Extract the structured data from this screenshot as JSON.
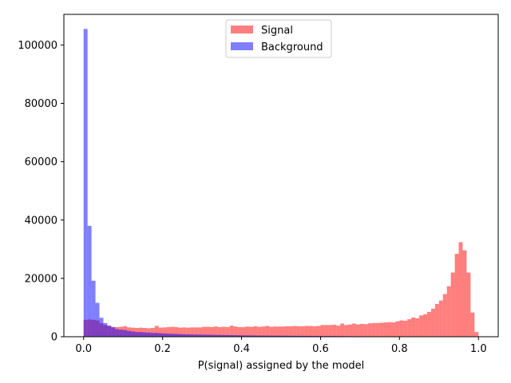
{
  "chart_data": {
    "type": "histogram",
    "xlabel": "P(signal) assigned by the model",
    "ylabel": "",
    "xlim": [
      -0.05,
      1.05
    ],
    "ylim": [
      0,
      110500
    ],
    "xticks": [
      0.0,
      0.2,
      0.4,
      0.6,
      0.8,
      1.0
    ],
    "xtick_labels": [
      "0.0",
      "0.2",
      "0.4",
      "0.6",
      "0.8",
      "1.0"
    ],
    "yticks": [
      0,
      20000,
      40000,
      60000,
      80000,
      100000
    ],
    "ytick_labels": [
      "0",
      "20000",
      "40000",
      "60000",
      "80000",
      "100000"
    ],
    "bins": {
      "start": 0.0,
      "end": 1.0,
      "count": 100
    },
    "legend_position": "top-center",
    "grid": false,
    "series": [
      {
        "name": "Signal",
        "color": "#ff0000",
        "alpha": 0.5,
        "values": [
          5800,
          5900,
          5800,
          5600,
          4600,
          4000,
          3700,
          3400,
          3300,
          3400,
          3600,
          3200,
          3100,
          3000,
          3100,
          3000,
          2900,
          3000,
          3700,
          3100,
          3200,
          3300,
          3400,
          3300,
          3100,
          3200,
          3100,
          3200,
          3200,
          3200,
          3400,
          3400,
          3300,
          3500,
          3300,
          3400,
          3300,
          3800,
          3500,
          3300,
          3300,
          3500,
          3400,
          3600,
          3400,
          3500,
          3700,
          3400,
          3500,
          3500,
          3500,
          3600,
          3600,
          3700,
          3600,
          3600,
          3700,
          3700,
          3600,
          3700,
          4000,
          4000,
          4000,
          4100,
          3800,
          4500,
          4000,
          4200,
          4500,
          4200,
          4400,
          4300,
          4600,
          4700,
          4700,
          4800,
          4900,
          5000,
          4900,
          5300,
          5600,
          5500,
          6000,
          6600,
          6300,
          7300,
          7700,
          8500,
          9600,
          11200,
          12400,
          14600,
          17300,
          22000,
          28400,
          32400,
          29600,
          22000,
          8300,
          1600
        ]
      },
      {
        "name": "Background",
        "color": "#0000ff",
        "alpha": 0.5,
        "values": [
          105500,
          38000,
          19200,
          11600,
          6500,
          4700,
          3800,
          3200,
          2600,
          2400,
          2300,
          2000,
          1800,
          1600,
          1600,
          1500,
          1400,
          1300,
          1300,
          1200,
          1100,
          1050,
          1000,
          950,
          900,
          850,
          800,
          780,
          750,
          720,
          700,
          680,
          650,
          620,
          600,
          580,
          560,
          540,
          520,
          500,
          480,
          460,
          440,
          420,
          400,
          390,
          380,
          370,
          360,
          350,
          340,
          330,
          320,
          310,
          300,
          290,
          280,
          270,
          260,
          250,
          240,
          230,
          220,
          210,
          200,
          190,
          180,
          170,
          160,
          150,
          140,
          130,
          120,
          110,
          100,
          95,
          90,
          85,
          80,
          75,
          70,
          65,
          60,
          55,
          50,
          45,
          40,
          35,
          30,
          28,
          26,
          24,
          22,
          20,
          18,
          16,
          14,
          12,
          10,
          8
        ]
      }
    ]
  }
}
